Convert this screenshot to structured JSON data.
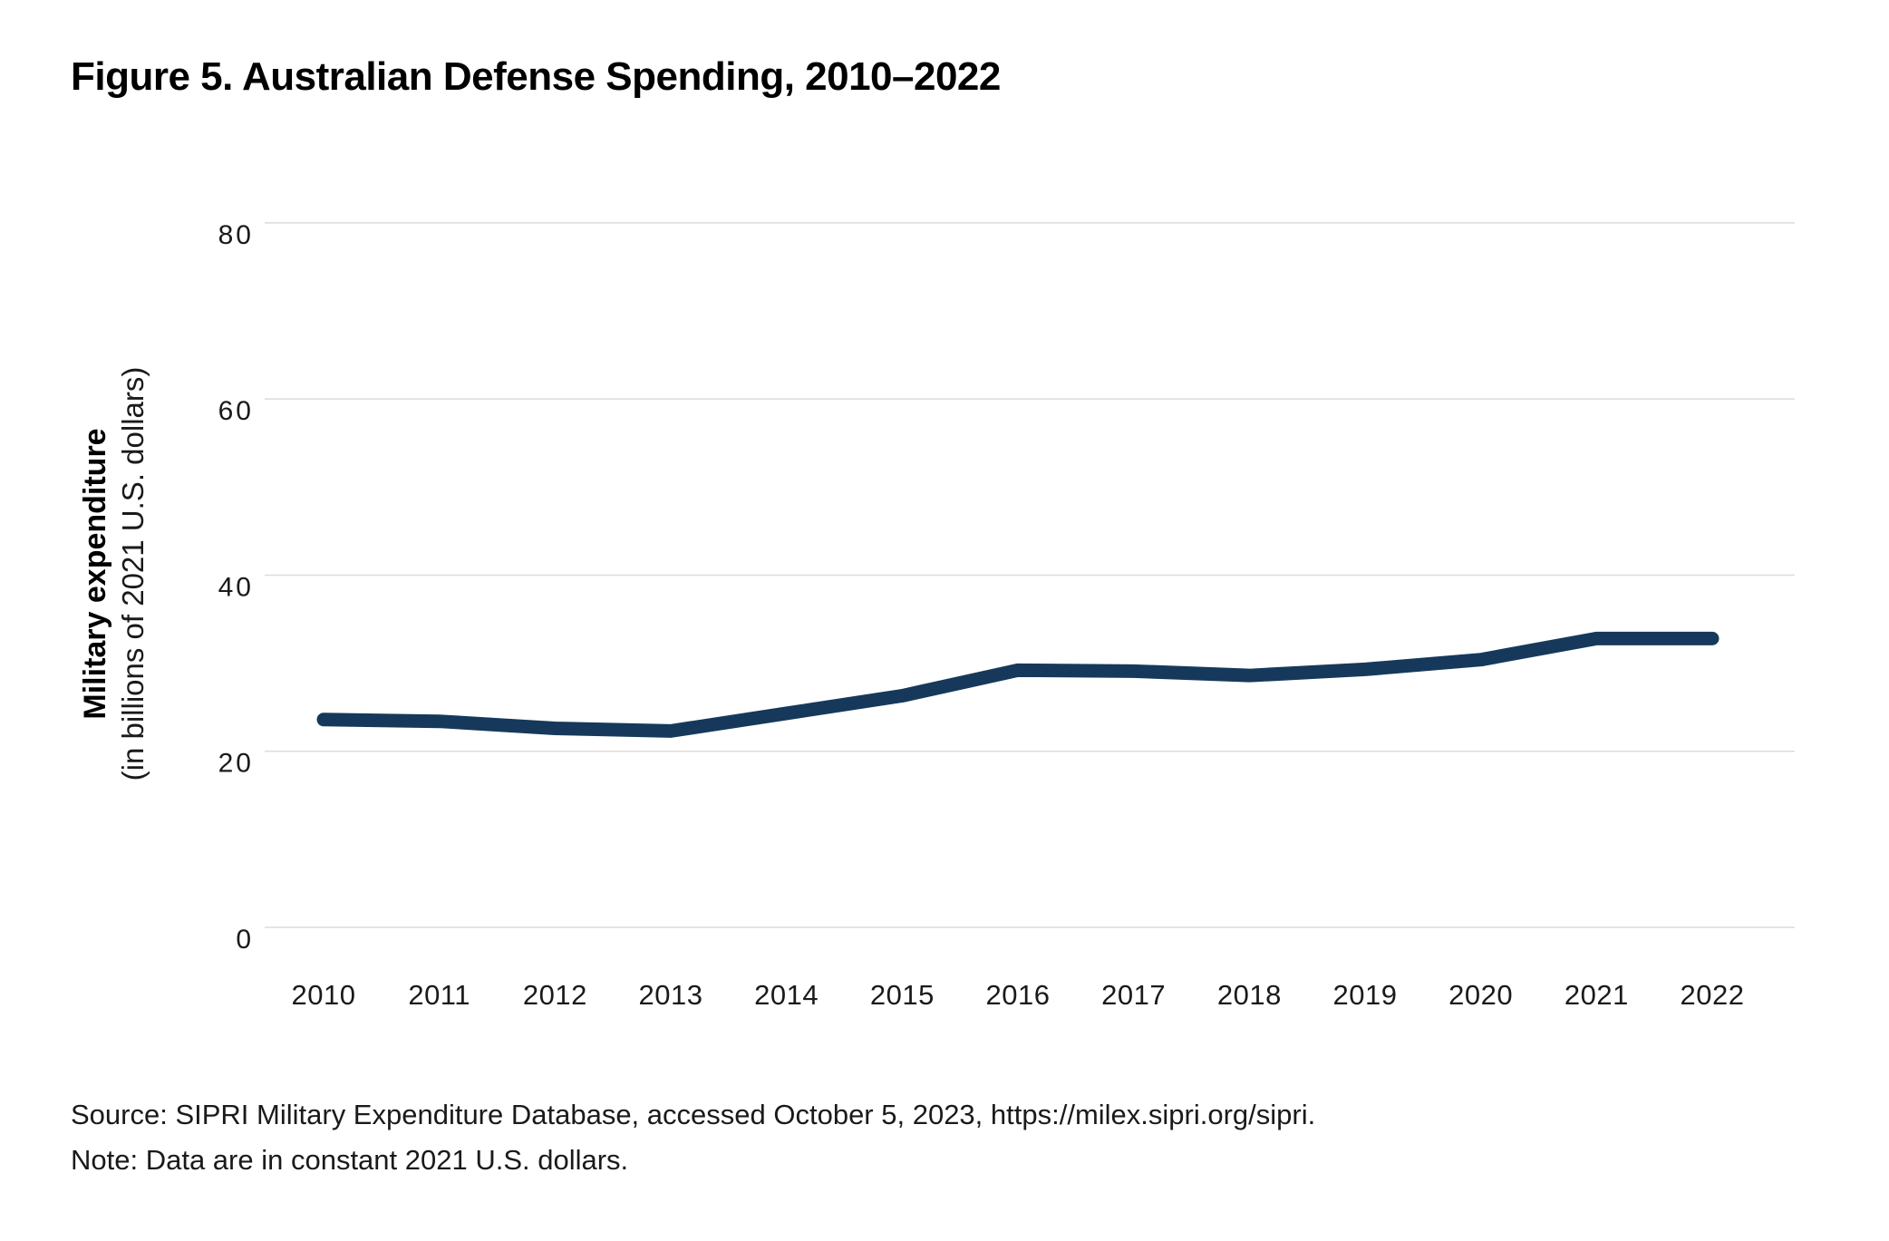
{
  "title": "Figure 5. Australian Defense Spending, 2010–2022",
  "chart_data": {
    "type": "line",
    "title": "Figure 5. Australian Defense Spending, 2010–2022",
    "categories": [
      "2010",
      "2011",
      "2012",
      "2013",
      "2014",
      "2015",
      "2016",
      "2017",
      "2018",
      "2019",
      "2020",
      "2021",
      "2022"
    ],
    "series": [
      {
        "name": "Australian military expenditure",
        "values": [
          23.6,
          23.4,
          22.6,
          22.3,
          24.3,
          26.3,
          29.2,
          29.1,
          28.6,
          29.3,
          30.4,
          32.8,
          32.8
        ]
      }
    ],
    "xlabel": "",
    "ylabel_bold": "Military expenditure",
    "ylabel_sub": "(in billions of 2021 U.S. dollars)",
    "y_ticks": [
      0,
      20,
      40,
      60,
      80
    ],
    "ylim": [
      0,
      80
    ],
    "grid": "horizontal-only",
    "legend_position": "none",
    "line_color": "#16395b",
    "grid_color": "#dcdcdc",
    "tick_text_color": "#1a1a1a"
  },
  "footnotes": {
    "source_line": "Source: SIPRI Military Expenditure Database, accessed October 5, 2023, https://milex.sipri.org/sipri.",
    "note_line": "Note: Data are in constant 2021 U.S. dollars."
  }
}
